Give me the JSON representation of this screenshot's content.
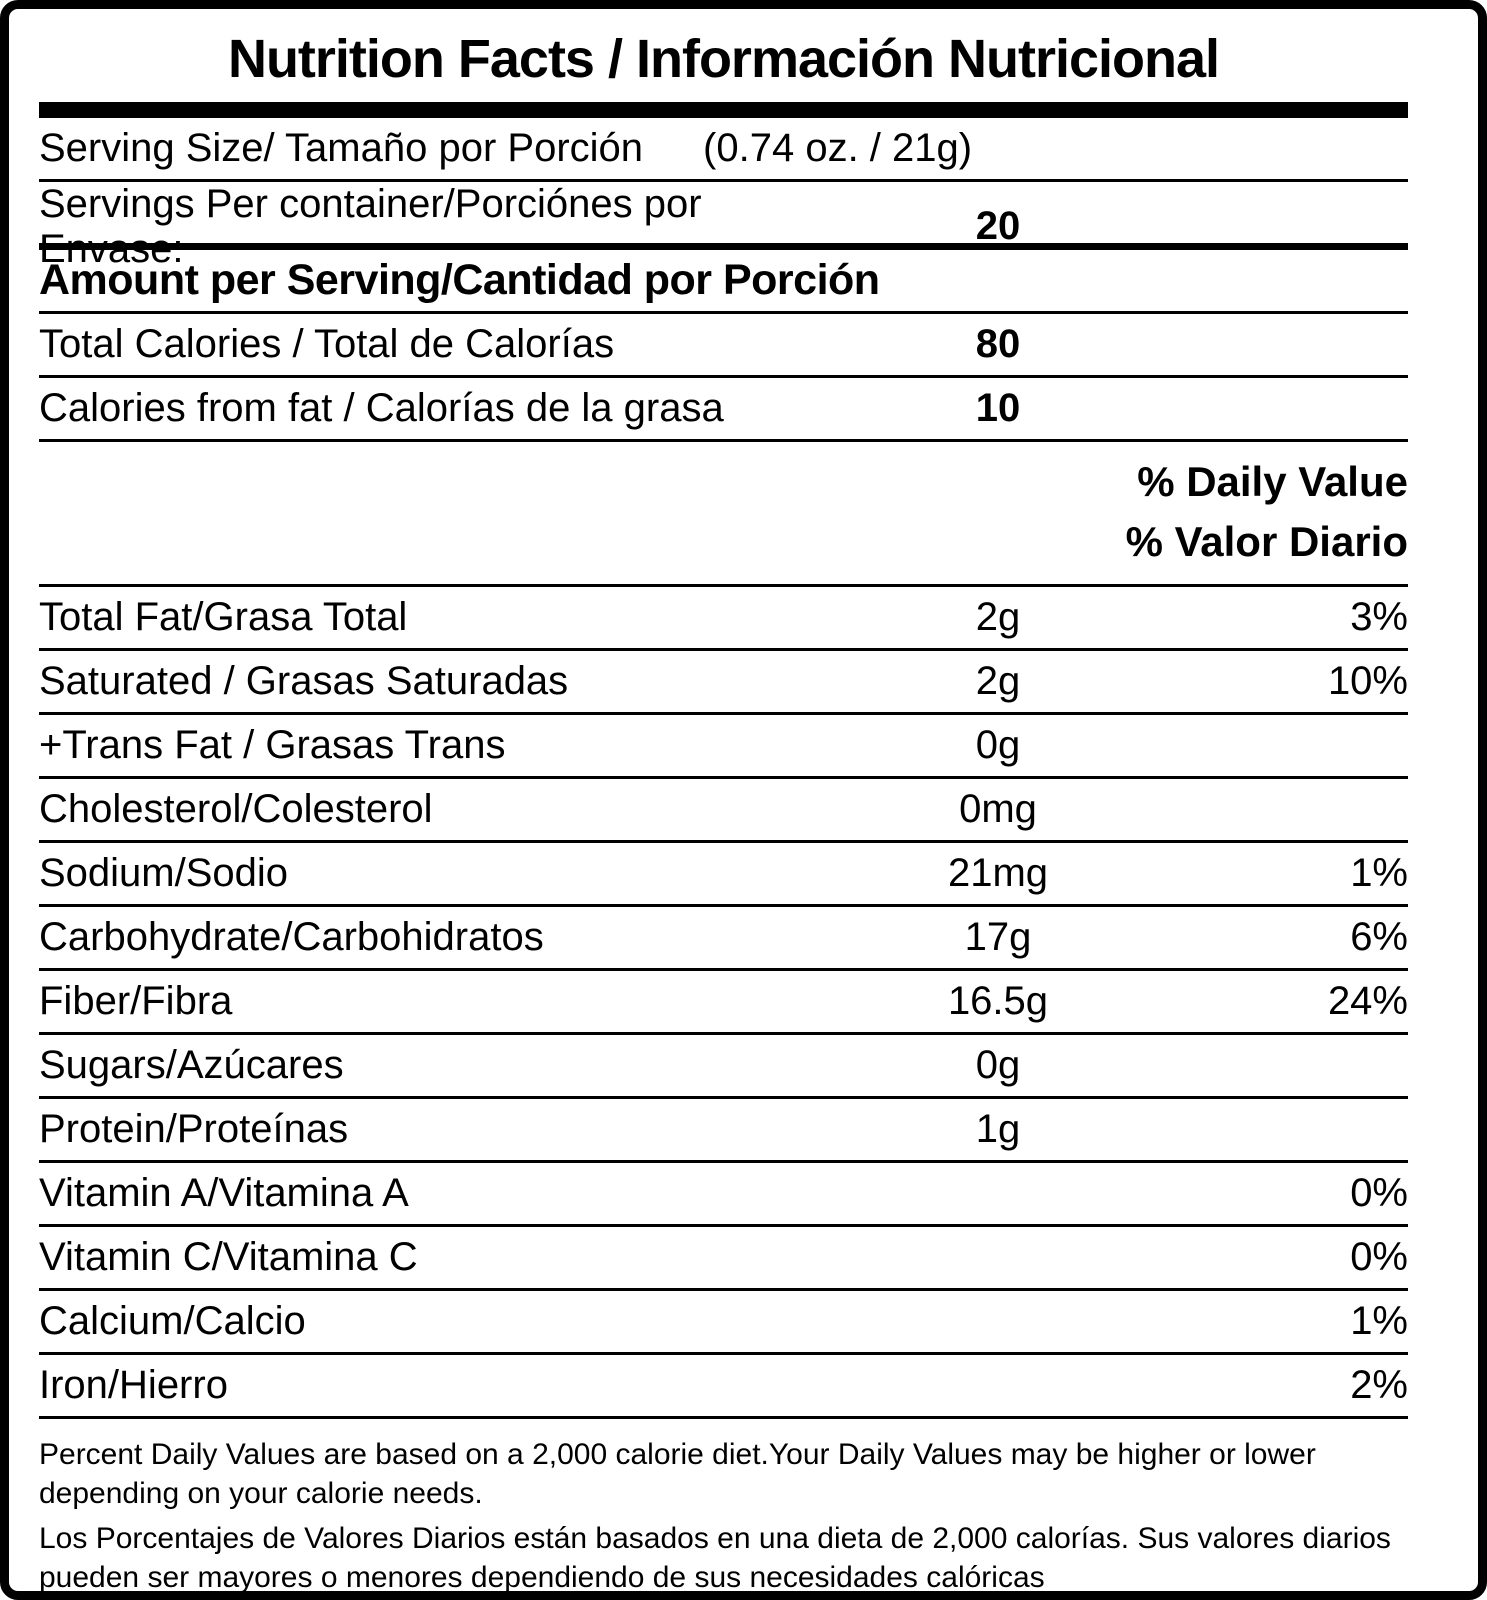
{
  "title": "Nutrition Facts / Información Nutricional",
  "serving_size": {
    "label": "Serving Size/ Tamaño por Porción",
    "value": "(0.74 oz. / 21g)"
  },
  "servings_per_container": {
    "label": "Servings Per container/Porciónes por Envase:",
    "value": "20"
  },
  "amount_heading": "Amount per Serving/Cantidad por Porción",
  "calories": [
    {
      "label": "Total Calories / Total de Calorías",
      "value": "80"
    },
    {
      "label": "Calories from fat / Calorías de la grasa",
      "value": "10"
    }
  ],
  "daily_value_heading": {
    "line1": "% Daily Value",
    "line2": "% Valor Diario"
  },
  "nutrients": [
    {
      "label": "Total Fat/Grasa Total",
      "amount": "2g",
      "dv": "3%"
    },
    {
      "label": "Saturated / Grasas Saturadas",
      "amount": "2g",
      "dv": "10%"
    },
    {
      "label": "+Trans Fat / Grasas Trans",
      "amount": "0g",
      "dv": ""
    },
    {
      "label": "Cholesterol/Colesterol",
      "amount": "0mg",
      "dv": ""
    },
    {
      "label": "Sodium/Sodio",
      "amount": "21mg",
      "dv": "1%"
    },
    {
      "label": "Carbohydrate/Carbohidratos",
      "amount": "17g",
      "dv": "6%"
    },
    {
      "label": "Fiber/Fibra",
      "amount": "16.5g",
      "dv": "24%"
    },
    {
      "label": "Sugars/Azúcares",
      "amount": "0g",
      "dv": ""
    },
    {
      "label": "Protein/Proteínas",
      "amount": "1g",
      "dv": ""
    },
    {
      "label": "Vitamin A/Vitamina A",
      "amount": "",
      "dv": "0%"
    },
    {
      "label": "Vitamin C/Vitamina C",
      "amount": "",
      "dv": "0%"
    },
    {
      "label": "Calcium/Calcio",
      "amount": "",
      "dv": "1%"
    },
    {
      "label": "Iron/Hierro",
      "amount": "",
      "dv": "2%"
    }
  ],
  "footnote": {
    "english": "Percent Daily Values are based on a 2,000 calorie diet.Your Daily Values may be higher or lower depending on your calorie needs.",
    "spanish": "Los Porcentajes de Valores Diarios están basados en una dieta de 2,000 calorías. Sus valores diarios pueden ser mayores o menores dependiendo de sus necesidades calóricas"
  },
  "colors": {
    "text": "#000000",
    "background": "#ffffff",
    "border": "#000000"
  }
}
